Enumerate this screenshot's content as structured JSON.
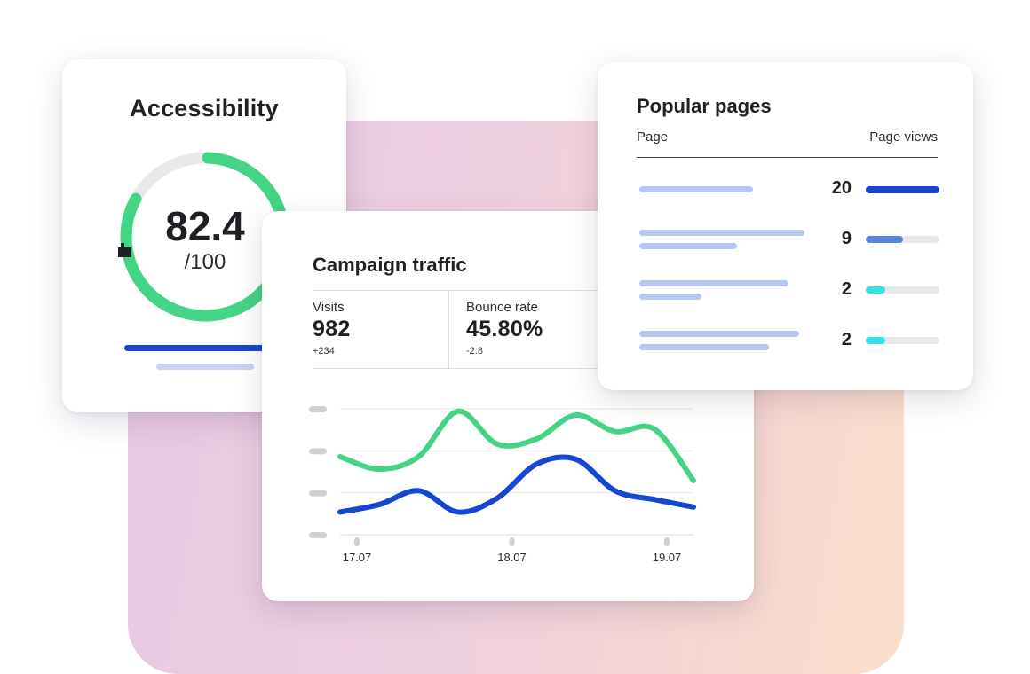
{
  "accessibility": {
    "title": "Accessibility",
    "score": "82.4",
    "max": "/100",
    "score_fraction": 0.824,
    "ring_color": "#44d486",
    "track_color": "#e9e9ec"
  },
  "campaign": {
    "title": "Campaign traffic",
    "stats": [
      {
        "label": "Visits",
        "value": "982",
        "delta": "+234"
      },
      {
        "label": "Bounce rate",
        "value": "45.80%",
        "delta": "-2.8"
      }
    ]
  },
  "chart_data": {
    "type": "line",
    "x_labels": [
      "17.07",
      "18.07",
      "19.07"
    ],
    "grid": true,
    "series": [
      {
        "color": "#44d486",
        "values": [
          0.62,
          0.52,
          0.62,
          0.98,
          0.72,
          0.76,
          0.95,
          0.82,
          0.84,
          0.43
        ]
      },
      {
        "color": "#1447d4",
        "values": [
          0.18,
          0.24,
          0.35,
          0.18,
          0.29,
          0.56,
          0.6,
          0.35,
          0.28,
          0.22
        ]
      }
    ]
  },
  "popular_pages": {
    "title": "Popular pages",
    "col_page": "Page",
    "col_views": "Page views",
    "rows": [
      {
        "views": "20",
        "fraction": 1.0,
        "color": "#1447d4"
      },
      {
        "views": "9",
        "fraction": 0.5,
        "color": "#5b85e4"
      },
      {
        "views": "2",
        "fraction": 0.26,
        "color": "#2fe3e6"
      },
      {
        "views": "2",
        "fraction": 0.26,
        "color": "#2fe3e6"
      }
    ]
  },
  "colors": {
    "accent_blue": "#1447d4",
    "accent_green": "#44d486",
    "placeholder_blue": "#b5c7f0"
  }
}
